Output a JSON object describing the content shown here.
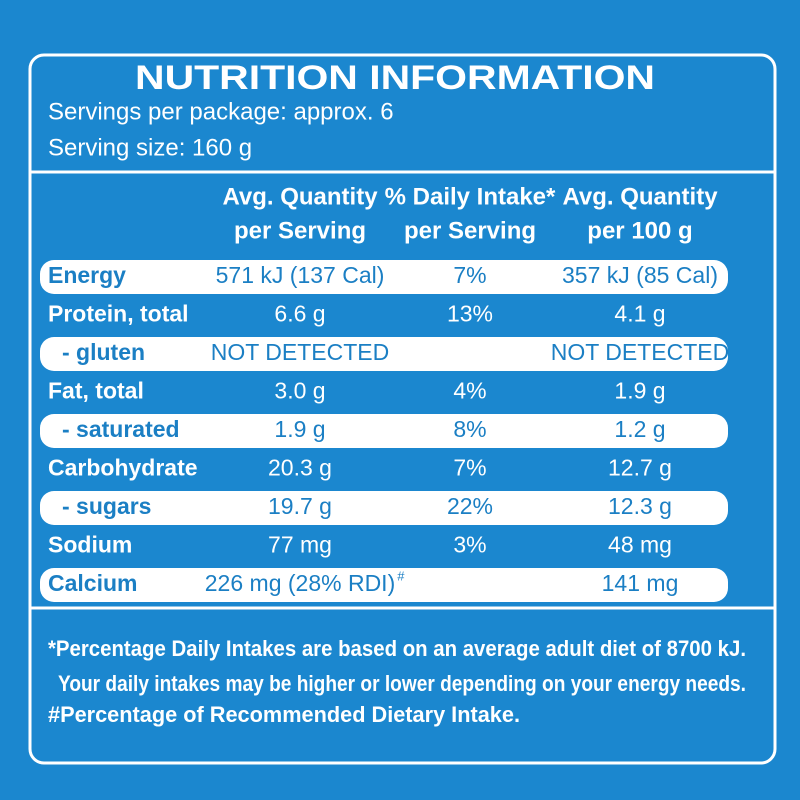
{
  "header": {
    "title": "NUTRITION INFORMATION",
    "servings_per_package": "Servings per package: approx. 6",
    "serving_size": "Serving size: 160 g"
  },
  "table": {
    "columns": [
      [
        "Avg. Quantity",
        "per Serving"
      ],
      [
        "% Daily Intake*",
        "per Serving"
      ],
      [
        "Avg. Quantity",
        "per 100 g"
      ]
    ],
    "rows": [
      [
        "Energy",
        "571 kJ (137 Cal)",
        "7%",
        "357 kJ (85 Cal)"
      ],
      [
        "Protein, total",
        "6.6 g",
        "13%",
        "4.1 g"
      ],
      [
        "- gluten",
        "NOT DETECTED",
        null,
        "NOT DETECTED"
      ],
      [
        "Fat, total",
        "3.0 g",
        "4%",
        "1.9 g"
      ],
      [
        "- saturated",
        "1.9 g",
        "8%",
        "1.2 g"
      ],
      [
        "Carbohydrate",
        "20.3 g",
        "7%",
        "12.7 g"
      ],
      [
        "- sugars",
        "19.7 g",
        "22%",
        "12.3 g"
      ],
      [
        "Sodium",
        "77 mg",
        "3%",
        "48 mg"
      ],
      [
        "Calcium",
        "226 mg (28% RDI)",
        null,
        "141 mg"
      ]
    ],
    "calcium_mark": "#"
  },
  "footnotes": [
    "*Percentage Daily Intakes are based on an average adult diet of 8700 kJ.",
    "Your daily intakes may be higher or lower depending on your energy needs.",
    "#Percentage of Recommended Dietary Intake."
  ]
}
